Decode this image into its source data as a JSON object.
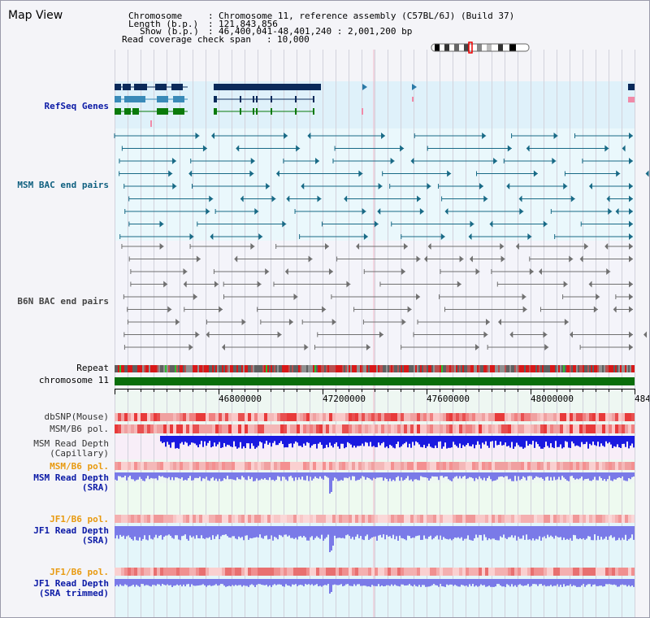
{
  "header": {
    "title": "Map View",
    "chromosome_label": "Chromosome",
    "chromosome_value": "Chromosome 11, reference assembly (C57BL/6J) (Build 37)",
    "length_label": "Length (b.p.)",
    "length_value": "121,843,856",
    "show_label": "Show (b.p.)",
    "show_value": "46,400,041-48,401,240 : 2,001,200 bp",
    "coverage_label": "Read coverage check span",
    "coverage_value": "10,000"
  },
  "tracks": {
    "refseq": "RefSeq Genes",
    "msm_bac": "MSM BAC end pairs",
    "b6n_bac": "B6N BAC end pairs",
    "repeat": "Repeat",
    "chromosome": "chromosome 11",
    "dbsnp": "dbSNP(Mouse)",
    "msm_b6_pol_1": "MSM/B6 pol.",
    "msm_depth_cap_1": "MSM Read Depth",
    "msm_depth_cap_2": "(Capillary)",
    "msm_b6_pol_2": "MSM/B6 pol.",
    "msm_depth_sra_1": "MSM Read Depth",
    "msm_depth_sra_2": "(SRA)",
    "jf1_b6_pol_1": "JF1/B6 pol.",
    "jf1_depth_sra_1": "JF1 Read Depth",
    "jf1_depth_sra_2": "(SRA)",
    "jf1_b6_pol_2": "JF1/B6 pol.",
    "jf1_depth_trim_1": "JF1 Read Depth",
    "jf1_depth_trim_2": "(SRA trimmed)"
  },
  "axis": {
    "ticks": [
      "46800000",
      "47200000",
      "47600000",
      "48000000",
      "484"
    ]
  },
  "colors": {
    "chromosome_bar": "#0a6e0a",
    "refseq_dark": "#0a2a5a",
    "refseq_mid": "#3a8ab8",
    "refseq_green": "#0a7a0a",
    "msm_pair": "#186a86",
    "b6n_pair": "#707070",
    "depth_dark": "#1a1ae0",
    "depth_light": "#7a7ae8",
    "pol_red": "#e83a3a"
  }
}
